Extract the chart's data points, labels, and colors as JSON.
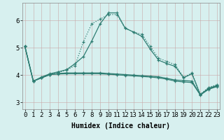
{
  "xlabel": "Humidex (Indice chaleur)",
  "background_color": "#d7f0ef",
  "grid_color": "#c0dede",
  "line_color": "#2e7d72",
  "x_values": [
    0,
    1,
    2,
    3,
    4,
    5,
    6,
    7,
    8,
    9,
    10,
    11,
    12,
    13,
    14,
    15,
    16,
    17,
    18,
    19,
    20,
    21,
    22,
    23
  ],
  "curve_bell_solid": [
    5.05,
    3.78,
    3.93,
    4.05,
    4.12,
    4.2,
    4.42,
    4.68,
    5.25,
    5.88,
    6.28,
    6.28,
    5.72,
    5.58,
    5.42,
    4.95,
    4.55,
    4.42,
    4.32,
    3.9,
    4.05,
    3.28,
    3.52,
    3.62
  ],
  "curve_bell_dot": [
    5.05,
    3.78,
    3.9,
    4.02,
    4.1,
    4.18,
    4.35,
    5.22,
    5.88,
    6.05,
    6.22,
    6.22,
    5.72,
    5.58,
    5.5,
    5.05,
    4.62,
    4.5,
    4.38,
    3.92,
    4.08,
    3.3,
    3.55,
    3.65
  ],
  "curve_flat1": [
    5.05,
    3.78,
    3.9,
    4.02,
    4.06,
    4.08,
    4.08,
    4.08,
    4.08,
    4.08,
    4.06,
    4.04,
    4.02,
    4.0,
    3.98,
    3.96,
    3.94,
    3.88,
    3.82,
    3.8,
    3.78,
    3.28,
    3.5,
    3.6
  ],
  "curve_flat2": [
    5.05,
    3.78,
    3.9,
    4.02,
    4.04,
    4.05,
    4.05,
    4.05,
    4.05,
    4.05,
    4.03,
    4.01,
    3.99,
    3.97,
    3.95,
    3.93,
    3.9,
    3.85,
    3.78,
    3.75,
    3.73,
    3.27,
    3.48,
    3.58
  ],
  "ylim": [
    2.75,
    6.65
  ],
  "xlim": [
    -0.3,
    23.3
  ],
  "yticks": [
    3,
    4,
    5,
    6
  ],
  "xticks": [
    0,
    1,
    2,
    3,
    4,
    5,
    6,
    7,
    8,
    9,
    10,
    11,
    12,
    13,
    14,
    15,
    16,
    17,
    18,
    19,
    20,
    21,
    22,
    23
  ],
  "xlabel_fontsize": 7,
  "tick_fontsize": 6.5
}
